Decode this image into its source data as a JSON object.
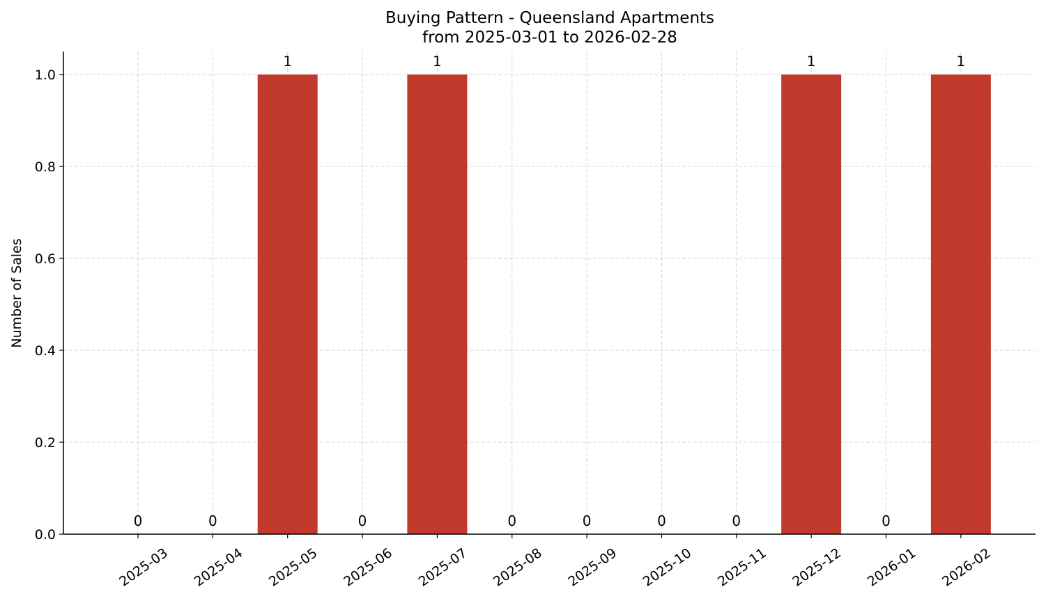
{
  "chart_data": {
    "type": "bar",
    "title": "Buying Pattern - Queensland Apartments",
    "subtitle": "from 2025-03-01 to 2026-02-28",
    "xlabel": "",
    "ylabel": "Number of Sales",
    "categories": [
      "2025-03",
      "2025-04",
      "2025-05",
      "2025-06",
      "2025-07",
      "2025-08",
      "2025-09",
      "2025-10",
      "2025-11",
      "2025-12",
      "2026-01",
      "2026-02"
    ],
    "values": [
      0,
      0,
      1,
      0,
      1,
      0,
      0,
      0,
      0,
      1,
      0,
      1
    ],
    "data_labels": [
      "0",
      "0",
      "1",
      "0",
      "1",
      "0",
      "0",
      "0",
      "0",
      "1",
      "0",
      "1"
    ],
    "ylim": [
      0,
      1.05
    ],
    "yticks": [
      "0.0",
      "0.2",
      "0.4",
      "0.6",
      "0.8",
      "1.0"
    ],
    "grid": true,
    "bar_color": "#c0392b"
  }
}
